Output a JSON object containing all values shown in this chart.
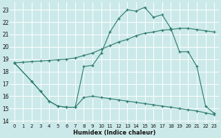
{
  "xlabel": "Humidex (Indice chaleur)",
  "bg_color": "#cce9e9",
  "grid_color": "#b8d8d8",
  "line_color": "#2e7d6e",
  "xlim": [
    -0.5,
    23.5
  ],
  "ylim": [
    13.8,
    23.6
  ],
  "yticks": [
    14,
    15,
    16,
    17,
    18,
    19,
    20,
    21,
    22,
    23
  ],
  "xticks": [
    0,
    1,
    2,
    3,
    4,
    5,
    6,
    7,
    8,
    9,
    10,
    11,
    12,
    13,
    14,
    15,
    16,
    17,
    18,
    19,
    20,
    21,
    22,
    23
  ],
  "line1_x": [
    0,
    2,
    3,
    4,
    5,
    6,
    7,
    8,
    9,
    10,
    11,
    12,
    13,
    14,
    15,
    16,
    17,
    18,
    19,
    20,
    21,
    22,
    23
  ],
  "line1_y": [
    18.7,
    17.2,
    16.4,
    15.6,
    15.2,
    15.1,
    15.1,
    18.4,
    18.5,
    19.5,
    21.2,
    22.3,
    23.0,
    22.9,
    23.2,
    22.4,
    22.6,
    21.5,
    19.6,
    19.6,
    18.4,
    15.2,
    14.6
  ],
  "line2_x": [
    0,
    1,
    2,
    3,
    4,
    5,
    6,
    7,
    8,
    9,
    10,
    11,
    12,
    13,
    14,
    15,
    16,
    17,
    18,
    19,
    20,
    21,
    22,
    23
  ],
  "line2_y": [
    18.7,
    18.75,
    18.8,
    18.85,
    18.9,
    18.95,
    19.0,
    19.1,
    19.3,
    19.5,
    19.8,
    20.1,
    20.4,
    20.6,
    20.9,
    21.1,
    21.2,
    21.35,
    21.4,
    21.5,
    21.5,
    21.4,
    21.3,
    21.2
  ],
  "line3_x": [
    0,
    2,
    3,
    4,
    5,
    6,
    7,
    8,
    9,
    10,
    11,
    12,
    13,
    14,
    15,
    16,
    17,
    18,
    19,
    20,
    21,
    22,
    23
  ],
  "line3_y": [
    18.7,
    17.2,
    16.4,
    15.6,
    15.2,
    15.1,
    15.1,
    15.9,
    16.0,
    15.9,
    15.8,
    15.7,
    15.6,
    15.5,
    15.4,
    15.3,
    15.2,
    15.1,
    15.0,
    14.9,
    14.8,
    14.65,
    14.5
  ]
}
